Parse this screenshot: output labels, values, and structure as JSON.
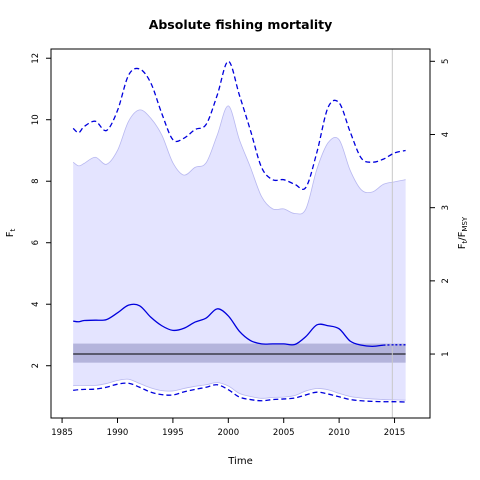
{
  "chart_data": {
    "type": "line",
    "title": "Absolute fishing mortality",
    "xlabel": "Time",
    "ylabel_left": {
      "base": "F",
      "sub": "t"
    },
    "ylabel_right": {
      "base": "F",
      "sub1": "t",
      "sep": "/F",
      "sub2": "MSY"
    },
    "xlim": [
      1984,
      2018.2
    ],
    "ylim": [
      0.3,
      12.3
    ],
    "xticks": [
      1985,
      1990,
      1995,
      2000,
      2005,
      2010,
      2015
    ],
    "yticks_left": [
      2,
      4,
      6,
      8,
      10,
      12
    ],
    "fmsy": 2.38,
    "fmsy_band": [
      2.1,
      2.72
    ],
    "yticks_right": [
      1,
      2,
      3,
      4,
      5
    ],
    "vline_x": 2014.8,
    "colors": {
      "median": "#0000dd",
      "ci_line": "#0000dd",
      "band_fill": "#e4e4ff",
      "band_edge": "#b8b8f0",
      "fmsy_band": "#b4b4dc",
      "fmsy_line": "#000000",
      "vline": "#c8c8c8"
    },
    "series": [
      {
        "x": [
          1986,
          1986.5,
          1987,
          1988,
          1989,
          1990,
          1991,
          1992,
          1993,
          1994,
          1995,
          1996,
          1997,
          1998,
          1999,
          2000,
          2001,
          2002,
          2003,
          2004,
          2005,
          2006,
          2007,
          2008,
          2009,
          2010,
          2011,
          2012,
          2013,
          2014,
          2015,
          2016
        ],
        "values": [
          3.45,
          3.43,
          3.47,
          3.48,
          3.5,
          3.72,
          3.97,
          3.95,
          3.58,
          3.3,
          3.15,
          3.22,
          3.42,
          3.55,
          3.85,
          3.62,
          3.12,
          2.82,
          2.71,
          2.71,
          2.71,
          2.69,
          2.95,
          3.33,
          3.3,
          3.2,
          2.8,
          2.67,
          2.63,
          2.67,
          2.68,
          2.68
        ]
      },
      {
        "x": [
          1986,
          1986.5,
          1987,
          1988,
          1989,
          1990,
          1991,
          1992,
          1993,
          1994,
          1995,
          1996,
          1997,
          1998,
          1999,
          2000,
          2001,
          2002,
          2003,
          2004,
          2005,
          2006,
          2007,
          2008,
          2009,
          2010,
          2011,
          2012,
          2013,
          2014,
          2015,
          2016
        ],
        "values": [
          9.72,
          9.58,
          9.78,
          9.95,
          9.65,
          10.3,
          11.45,
          11.65,
          11.2,
          10.2,
          9.35,
          9.4,
          9.68,
          9.85,
          10.8,
          11.9,
          10.8,
          9.65,
          8.45,
          8.05,
          8.05,
          7.9,
          7.8,
          8.95,
          10.4,
          10.55,
          9.6,
          8.75,
          8.62,
          8.72,
          8.92,
          9.0
        ]
      },
      {
        "x": [
          1986,
          1986.5,
          1987,
          1988,
          1989,
          1990,
          1991,
          1992,
          1993,
          1994,
          1995,
          1996,
          1997,
          1998,
          1999,
          2000,
          2001,
          2002,
          2003,
          2004,
          2005,
          2006,
          2007,
          2008,
          2009,
          2010,
          2011,
          2012,
          2013,
          2014,
          2015,
          2016
        ],
        "values": [
          1.2,
          1.22,
          1.23,
          1.24,
          1.3,
          1.4,
          1.43,
          1.3,
          1.14,
          1.06,
          1.05,
          1.15,
          1.23,
          1.3,
          1.38,
          1.22,
          0.98,
          0.9,
          0.86,
          0.9,
          0.92,
          0.95,
          1.05,
          1.14,
          1.08,
          0.99,
          0.9,
          0.86,
          0.84,
          0.83,
          0.83,
          0.82
        ]
      },
      {
        "x": [
          1986,
          1986.5,
          1987,
          1988,
          1989,
          1990,
          1991,
          1992,
          1993,
          1994,
          1995,
          1996,
          1997,
          1998,
          1999,
          2000,
          2001,
          2002,
          2003,
          2004,
          2005,
          2006,
          2007,
          2008,
          2009,
          2010,
          2011,
          2012,
          2013,
          2014,
          2015,
          2016
        ],
        "values": [
          8.62,
          8.5,
          8.58,
          8.78,
          8.55,
          9.0,
          9.95,
          10.32,
          10.05,
          9.5,
          8.6,
          8.2,
          8.45,
          8.6,
          9.5,
          10.45,
          9.35,
          8.45,
          7.5,
          7.1,
          7.1,
          6.95,
          7.1,
          8.4,
          9.25,
          9.35,
          8.35,
          7.72,
          7.65,
          7.9,
          7.98,
          8.05
        ]
      },
      {
        "x": [
          1986,
          1986.5,
          1987,
          1988,
          1989,
          1990,
          1991,
          1992,
          1993,
          1994,
          1995,
          1996,
          1997,
          1998,
          1999,
          2000,
          2001,
          2002,
          2003,
          2004,
          2005,
          2006,
          2007,
          2008,
          2009,
          2010,
          2011,
          2012,
          2013,
          2014,
          2015,
          2016
        ],
        "values": [
          1.35,
          1.36,
          1.36,
          1.36,
          1.42,
          1.52,
          1.56,
          1.42,
          1.28,
          1.19,
          1.18,
          1.26,
          1.33,
          1.38,
          1.45,
          1.34,
          1.1,
          1.0,
          0.94,
          0.97,
          0.98,
          1.03,
          1.18,
          1.26,
          1.22,
          1.1,
          1.0,
          0.95,
          0.92,
          0.9,
          0.89,
          0.88
        ]
      }
    ]
  }
}
